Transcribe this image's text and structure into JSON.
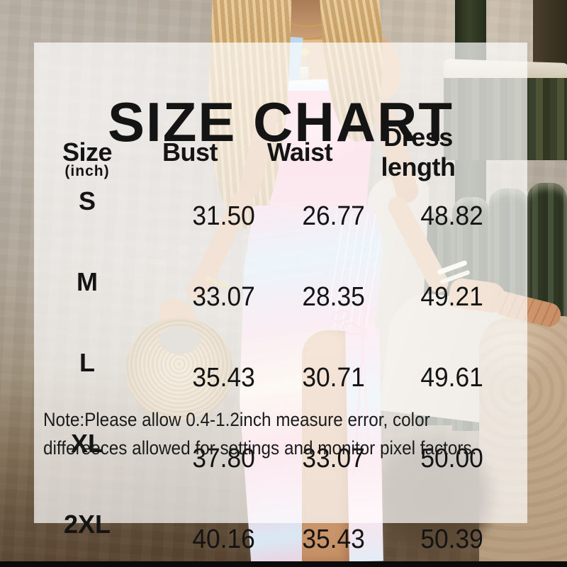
{
  "title": "SIZE CHART",
  "table": {
    "headers": {
      "size": "Size",
      "size_unit": "(inch)",
      "bust": "Bust",
      "waist": "Waist",
      "dress_length": "Dress length"
    },
    "rows": [
      {
        "size": "S",
        "bust": "31.50",
        "waist": "26.77",
        "dress_length": "48.82"
      },
      {
        "size": "M",
        "bust": "33.07",
        "waist": "28.35",
        "dress_length": "49.21"
      },
      {
        "size": "L",
        "bust": "35.43",
        "waist": "30.71",
        "dress_length": "49.61"
      },
      {
        "size": "XL",
        "bust": "37.80",
        "waist": "33.07",
        "dress_length": "50.00"
      },
      {
        "size": "2XL",
        "bust": "40.16",
        "waist": "35.43",
        "dress_length": "50.39"
      }
    ]
  },
  "note": {
    "line1": "Note:Please allow 0.4-1.2inch measure error, color",
    "line2": "differeeces allowed for settings and monitor pixel factors."
  },
  "colors": {
    "text": "#141414",
    "overlay_panel": "rgba(255,255,255,0.70)",
    "dress_pink": "#f5b3cb",
    "dress_blue": "#bcdcf0",
    "dress_cream": "#f6e9d6",
    "cactus_green": "#37402c",
    "straw_bag": "#c9a878",
    "bottom_strip": "#0b0b0b"
  }
}
